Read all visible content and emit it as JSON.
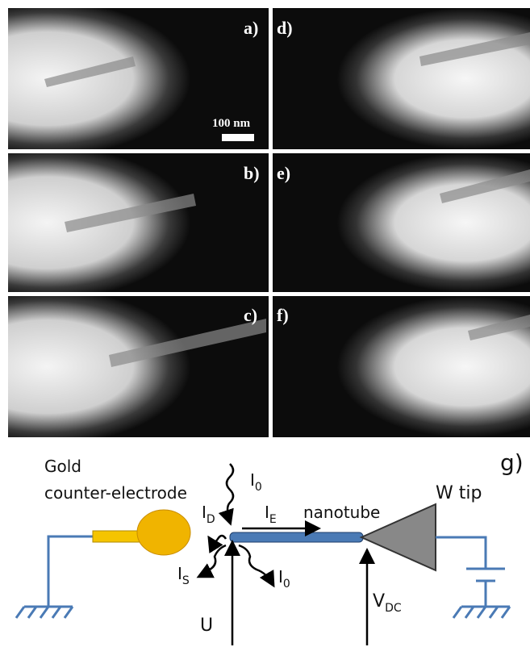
{
  "panels": [
    {
      "label": "a)"
    },
    {
      "label": "b)"
    },
    {
      "label": "c)"
    },
    {
      "label": "d)"
    },
    {
      "label": "e)"
    },
    {
      "label": "f)"
    }
  ],
  "scale_bar": "100 nm",
  "diagram": {
    "label": "g)",
    "electrode": [
      "Gold",
      "counter-electrode"
    ],
    "i0_in": {
      "main": "I",
      "sub": "0"
    },
    "id": {
      "main": "I",
      "sub": "D"
    },
    "ie": {
      "main": "I",
      "sub": "E"
    },
    "nanotube": "nanotube",
    "w_tip": "W tip",
    "is": {
      "main": "I",
      "sub": "S"
    },
    "i0_out": {
      "main": "I",
      "sub": "0"
    },
    "u": "U",
    "vdc": {
      "main": "V",
      "sub": "DC"
    }
  }
}
